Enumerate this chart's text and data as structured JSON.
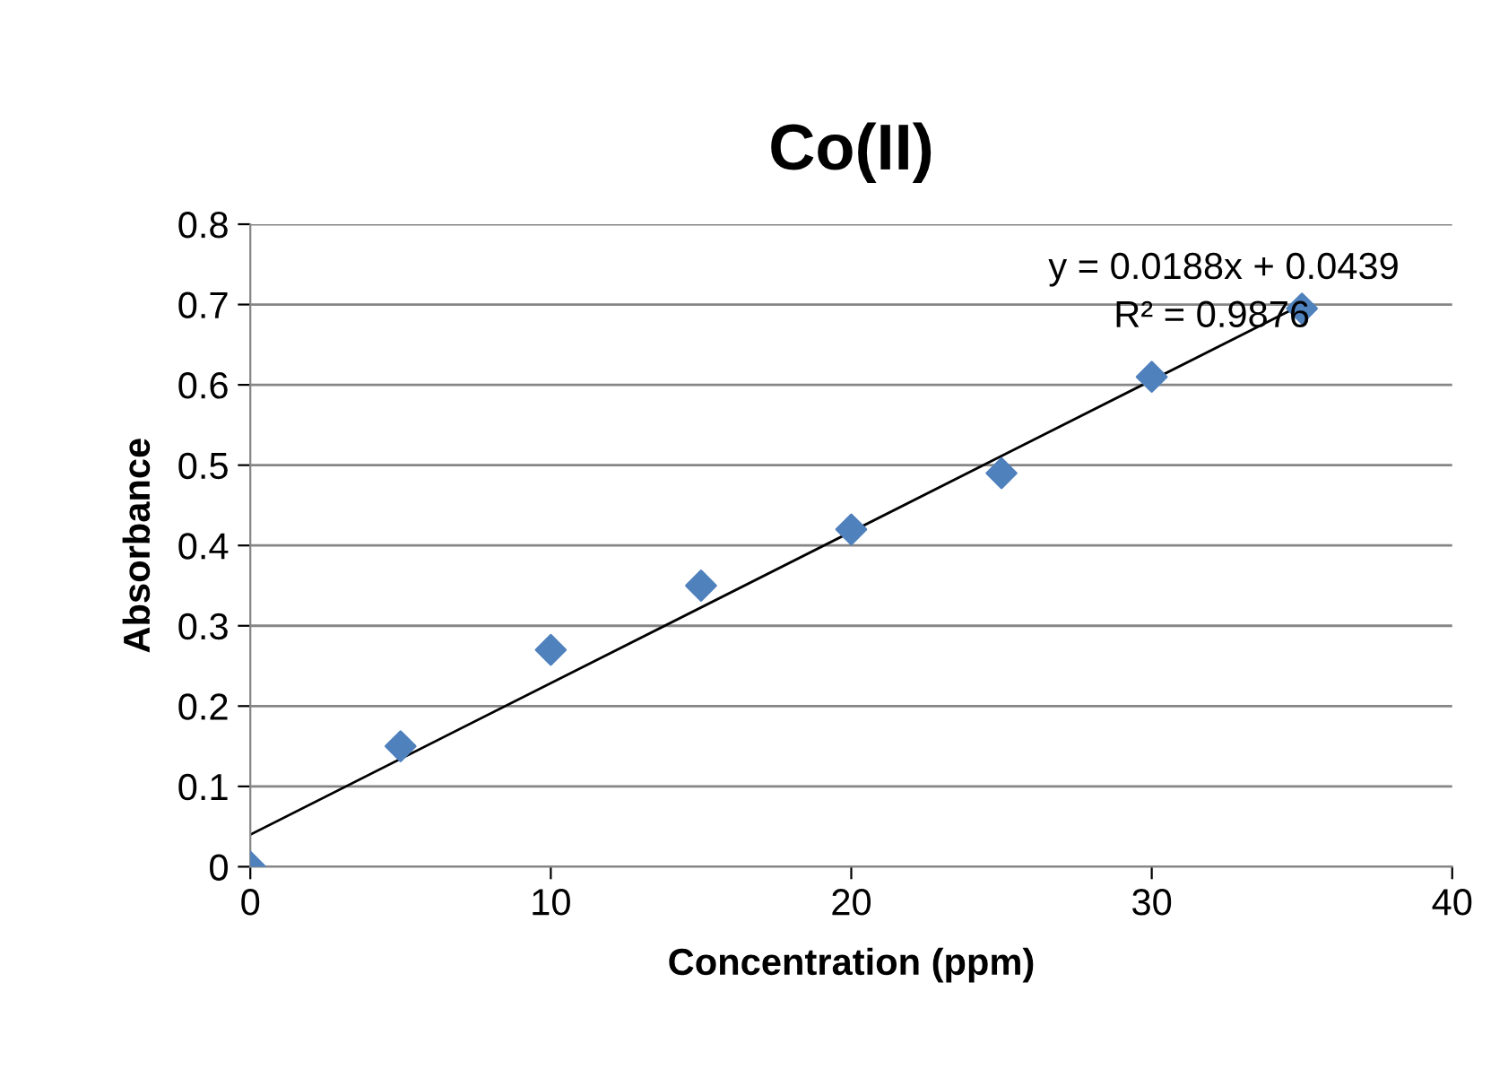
{
  "chart_data": {
    "type": "scatter",
    "title": "Co(II)",
    "xlabel": "Concentration (ppm)",
    "ylabel": "Absorbance",
    "x": [
      0,
      5,
      10,
      15,
      20,
      25,
      30,
      35
    ],
    "series": [
      {
        "color": "#4f81bd",
        "marker": "diamond",
        "values": [
          0,
          0.15,
          0.27,
          0.35,
          0.42,
          0.49,
          0.61,
          0.695
        ]
      },
      {
        "type": "line",
        "color": "#000000",
        "marker": "none",
        "x": [
          0,
          35
        ],
        "values": [
          0.04,
          0.7
        ]
      }
    ],
    "annotations": [
      "y = 0.0188x + 0.0439",
      "R² = 0.9876"
    ],
    "xlim": [
      0,
      40
    ],
    "xticks": [
      0,
      10,
      20,
      30,
      40
    ],
    "ylim": [
      0,
      0.8
    ],
    "yticks": [
      0,
      0.1,
      0.2,
      0.3,
      0.4,
      0.5,
      0.6,
      0.7,
      0.8
    ],
    "grid": "y",
    "legend": false
  }
}
